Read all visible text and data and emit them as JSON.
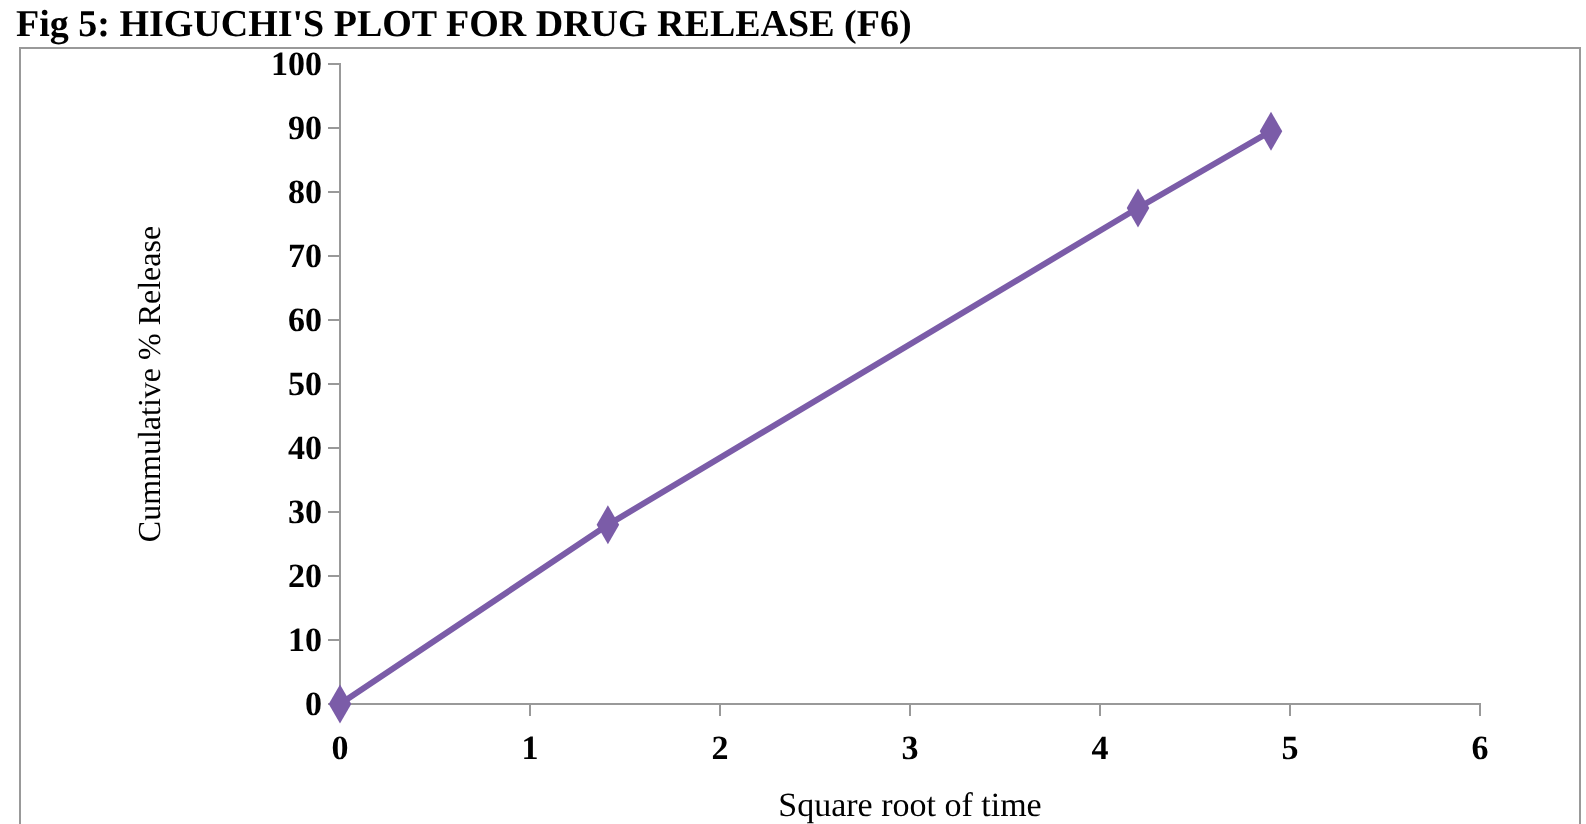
{
  "chart_data": {
    "type": "line",
    "title": "Fig 5: HIGUCHI'S PLOT FOR DRUG RELEASE (F6)",
    "xlabel": "Square root of time",
    "ylabel": "Cummulative % Release",
    "x": [
      0,
      1.41,
      4.2,
      4.9
    ],
    "series": [
      {
        "color": "#7b5ca8",
        "values": [
          0,
          28,
          77.5,
          89.5
        ]
      }
    ],
    "xlim": [
      0,
      6
    ],
    "xticks": [
      0,
      1,
      2,
      3,
      4,
      5,
      6
    ],
    "ylim": [
      0,
      100
    ],
    "yticks": [
      0,
      10,
      20,
      30,
      40,
      50,
      60,
      70,
      80,
      90,
      100
    ],
    "marker": "diamond",
    "line_style": "solid",
    "grid": false
  }
}
